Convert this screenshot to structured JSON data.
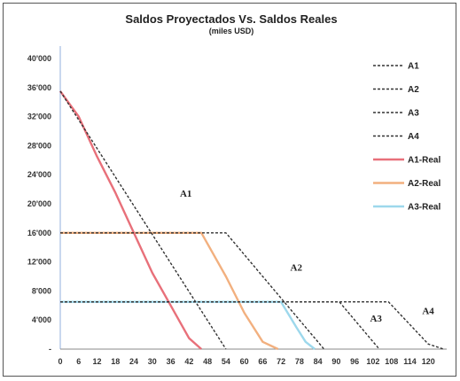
{
  "chart_data": {
    "type": "line",
    "title": "Saldos Proyectados Vs. Saldos Reales",
    "subtitle": "(miles USD)",
    "xlabel": "",
    "ylabel": "",
    "xlim": [
      0,
      126
    ],
    "ylim": [
      0,
      40000
    ],
    "x_ticks": [
      "0",
      "6",
      "12",
      "18",
      "24",
      "30",
      "36",
      "42",
      "48",
      "54",
      "60",
      "66",
      "72",
      "78",
      "84",
      "90",
      "96",
      "102",
      "108",
      "114",
      "120"
    ],
    "y_ticks": [
      {
        "value": 40000,
        "label": "40'000"
      },
      {
        "value": 36000,
        "label": "36'000"
      },
      {
        "value": 32000,
        "label": "32'000"
      },
      {
        "value": 28000,
        "label": "28'000"
      },
      {
        "value": 24000,
        "label": "24'000"
      },
      {
        "value": 20000,
        "label": "20'000"
      },
      {
        "value": 16000,
        "label": "16'000"
      },
      {
        "value": 12000,
        "label": "12'000"
      },
      {
        "value": 8000,
        "label": "8'000"
      },
      {
        "value": 4000,
        "label": "4'000"
      },
      {
        "value": 0,
        "label": "-"
      }
    ],
    "grid": false,
    "legend_position": "right",
    "series": [
      {
        "name": "A1",
        "color": "#333333",
        "dash": true,
        "points": [
          [
            0,
            35500
          ],
          [
            54,
            0
          ]
        ]
      },
      {
        "name": "A2",
        "color": "#333333",
        "dash": true,
        "points": [
          [
            0,
            16000
          ],
          [
            54,
            16000
          ],
          [
            86,
            0
          ]
        ]
      },
      {
        "name": "A3",
        "color": "#333333",
        "dash": true,
        "points": [
          [
            0,
            6500
          ],
          [
            91,
            6500
          ],
          [
            104,
            0
          ]
        ]
      },
      {
        "name": "A4",
        "color": "#333333",
        "dash": true,
        "points": [
          [
            0,
            6500
          ],
          [
            107,
            6500
          ],
          [
            120,
            700
          ],
          [
            125,
            0
          ]
        ]
      },
      {
        "name": "A1-Real",
        "color": "#e8707a",
        "dash": false,
        "points": [
          [
            0,
            35500
          ],
          [
            6,
            32000
          ],
          [
            12,
            26500
          ],
          [
            18,
            21500
          ],
          [
            24,
            16000
          ],
          [
            30,
            10500
          ],
          [
            36,
            6000
          ],
          [
            42,
            1500
          ],
          [
            46,
            0
          ]
        ]
      },
      {
        "name": "A2-Real",
        "color": "#f2b07f",
        "dash": false,
        "points": [
          [
            0,
            16000
          ],
          [
            46,
            16000
          ],
          [
            54,
            10000
          ],
          [
            60,
            5000
          ],
          [
            66,
            1000
          ],
          [
            71,
            0
          ]
        ]
      },
      {
        "name": "A3-Real",
        "color": "#9dd8ec",
        "dash": false,
        "points": [
          [
            0,
            6500
          ],
          [
            72,
            6500
          ],
          [
            77,
            3000
          ],
          [
            80,
            1000
          ],
          [
            83,
            0
          ]
        ]
      }
    ],
    "annotations": [
      {
        "text": "A1",
        "x": 39,
        "y": 21000
      },
      {
        "text": "A2",
        "x": 75,
        "y": 10800
      },
      {
        "text": "A3",
        "x": 101,
        "y": 3800
      },
      {
        "text": "A4",
        "x": 118,
        "y": 4800
      }
    ]
  }
}
